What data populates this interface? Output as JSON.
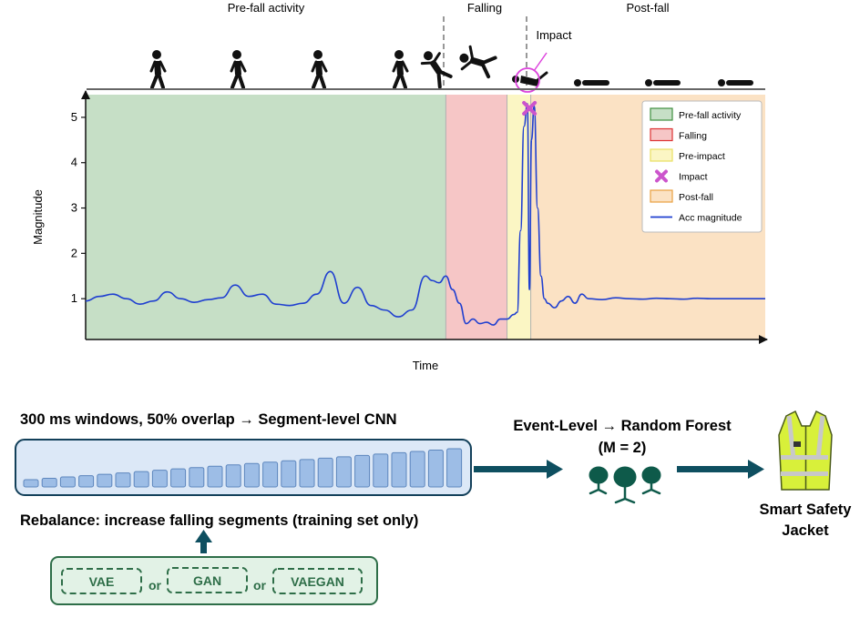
{
  "phases": {
    "pre_fall": "Pre-fall activity",
    "falling": "Falling",
    "post_fall": "Post-fall",
    "impact": "Impact"
  },
  "colors": {
    "pre_fall": "#c6dfc6",
    "falling": "#f6c6c6",
    "pre_impact": "#fbf6c4",
    "post_fall": "#fbe2c4",
    "signal": "#1f3fd0",
    "impact": "#cc55cc",
    "accent_box": "#dce8f7",
    "dark_teal": "#0e4f60",
    "green_box": "#e2f2e6",
    "green_dark": "#2e6e48"
  },
  "chart_data": {
    "type": "line",
    "title": "",
    "xlabel": "Time",
    "ylabel": "Magnitude",
    "ylim": [
      0.1,
      5.5
    ],
    "yticks": [
      1,
      2,
      3,
      4,
      5
    ],
    "xlim": [
      0,
      100
    ],
    "regions": [
      {
        "name": "Pre-fall activity",
        "x0": 0,
        "x1": 53,
        "color_key": "pre_fall"
      },
      {
        "name": "Falling",
        "x0": 53,
        "x1": 62,
        "color_key": "falling"
      },
      {
        "name": "Pre-impact",
        "x0": 62,
        "x1": 65.5,
        "color_key": "pre_impact"
      },
      {
        "name": "Post-fall",
        "x0": 65.5,
        "x1": 100,
        "color_key": "post_fall"
      }
    ],
    "impact_point": {
      "x": 65.3,
      "y": 5.2
    },
    "series": [
      {
        "name": "Acc magnitude",
        "x": [
          0,
          2,
          4,
          6,
          8,
          10,
          12,
          14,
          16,
          18,
          20,
          22,
          24,
          26,
          28,
          30,
          32,
          34,
          36,
          38,
          40,
          42,
          44,
          46,
          48,
          50,
          51,
          52,
          53,
          54,
          55,
          56,
          57,
          58,
          59,
          60,
          61,
          62,
          63,
          63.5,
          64,
          64.5,
          65,
          65.3,
          65.6,
          66,
          66.5,
          67,
          67.5,
          68,
          69,
          70,
          71,
          72,
          73,
          74,
          76,
          78,
          80,
          82,
          84,
          86,
          88,
          90,
          92,
          94,
          96,
          98,
          100
        ],
        "y": [
          0.95,
          1.05,
          1.1,
          1.0,
          0.88,
          0.95,
          1.15,
          1.0,
          0.92,
          0.98,
          1.02,
          1.3,
          1.05,
          1.1,
          0.88,
          0.85,
          0.9,
          1.1,
          1.6,
          0.9,
          1.25,
          0.85,
          0.75,
          0.6,
          0.75,
          1.5,
          1.4,
          1.35,
          1.5,
          1.2,
          0.9,
          0.45,
          0.55,
          0.45,
          0.48,
          0.42,
          0.55,
          0.55,
          0.65,
          0.7,
          2.5,
          4.8,
          5.3,
          1.2,
          4.5,
          5.25,
          3.0,
          1.5,
          1.0,
          0.9,
          0.8,
          0.95,
          1.05,
          0.9,
          1.1,
          1.0,
          0.98,
          1.02,
          1.0,
          0.99,
          1.01,
          1.0,
          0.99,
          1.01,
          1.0,
          1.0,
          1.0,
          1.0,
          1.0
        ]
      }
    ],
    "legend_position": "top-right",
    "legend": [
      {
        "label": "Pre-fall activity",
        "kind": "box",
        "color_key": "pre_fall",
        "edge": "#3f8f3f"
      },
      {
        "label": "Falling",
        "kind": "box",
        "color_key": "falling",
        "edge": "#dd3333"
      },
      {
        "label": "Pre-impact",
        "kind": "box",
        "color_key": "pre_impact",
        "edge": "#e8e060"
      },
      {
        "label": "Impact",
        "kind": "cross",
        "color_key": "impact"
      },
      {
        "label": "Post-fall",
        "kind": "box",
        "color_key": "post_fall",
        "edge": "#e8a040"
      },
      {
        "label": "Acc magnitude",
        "kind": "line",
        "color_key": "signal"
      }
    ]
  },
  "figures": [
    {
      "icon": "walking-person-icon"
    },
    {
      "icon": "walking-person-icon"
    },
    {
      "icon": "walking-person-icon"
    },
    {
      "icon": "walking-person-icon"
    },
    {
      "icon": "stumbling-person-icon"
    },
    {
      "icon": "falling-person-icon"
    },
    {
      "icon": "impact-person-icon"
    },
    {
      "icon": "lying-person-icon"
    },
    {
      "icon": "lying-person-icon"
    },
    {
      "icon": "lying-person-icon"
    }
  ],
  "pipeline": {
    "segments_title": "300 ms windows, 50% overlap → Segment-level CNN",
    "segment_count": 24,
    "rebalance_label": "Rebalance: increase falling segments (training set only)",
    "generators": [
      "VAE",
      "GAN",
      "VAEGAN"
    ],
    "or_label": "or",
    "event_title_line1": "Event-Level → Random Forest",
    "event_title_line2": "(M = 2)",
    "forest_icon": "tree-ensemble-icon",
    "output_line1": "Smart Safety",
    "output_line2": "Jacket",
    "output_icon": "safety-vest-icon"
  }
}
